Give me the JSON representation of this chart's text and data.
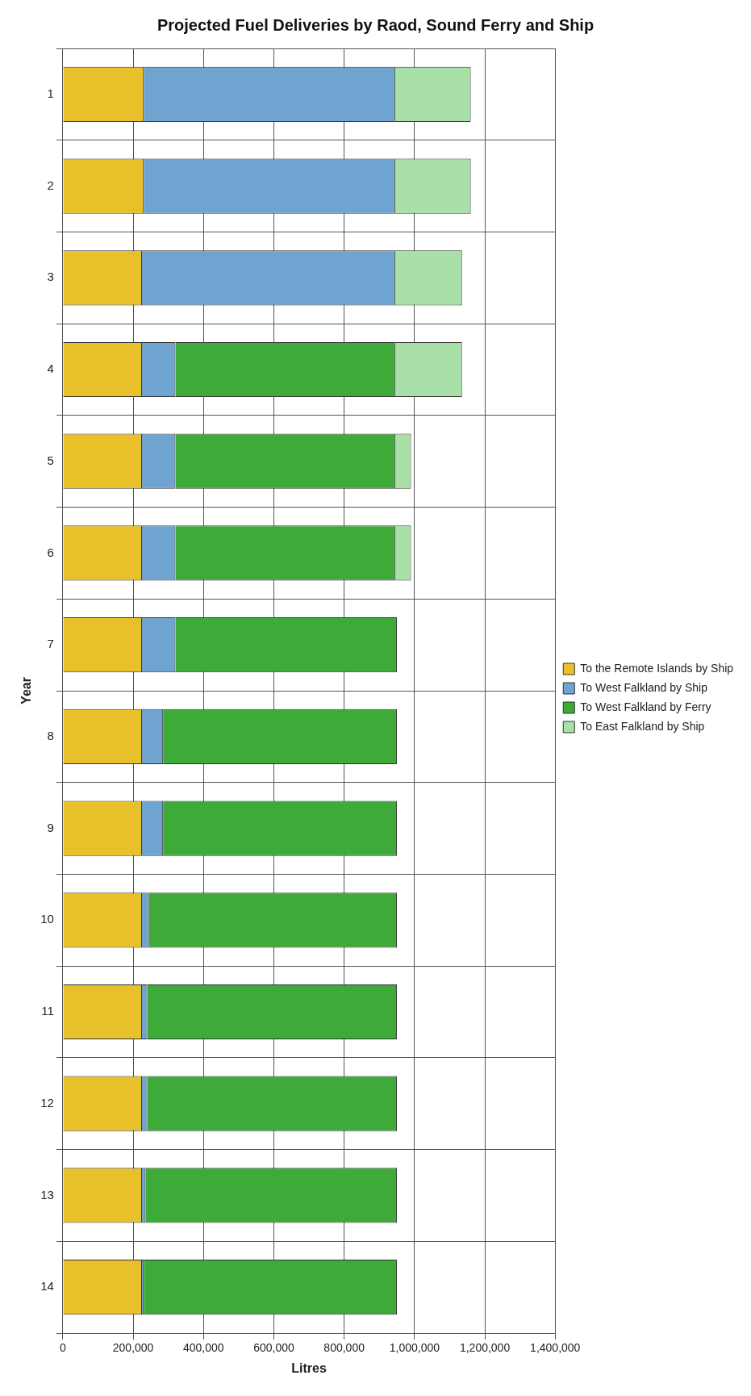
{
  "chart_data": {
    "type": "bar",
    "orientation": "horizontal",
    "stacked": true,
    "title": "Projected Fuel Deliveries by Raod, Sound Ferry and Ship",
    "xlabel": "Litres",
    "ylabel": "Year",
    "categories": [
      "1",
      "2",
      "3",
      "4",
      "5",
      "6",
      "7",
      "8",
      "9",
      "10",
      "11",
      "12",
      "13",
      "14"
    ],
    "series": [
      {
        "name": "To the Remote Islands by Ship",
        "color": "#e8c12a",
        "values": [
          230000,
          230000,
          225000,
          225000,
          225000,
          225000,
          225000,
          225000,
          225000,
          225000,
          225000,
          225000,
          225000,
          225000
        ]
      },
      {
        "name": "To West Falkland by Ship",
        "color": "#6ea4cf",
        "values": [
          715000,
          715000,
          720000,
          95000,
          95000,
          95000,
          95000,
          60000,
          60000,
          20000,
          15000,
          15000,
          10000,
          5000
        ]
      },
      {
        "name": "To West Falkland by Ferry",
        "color": "#3daa3a",
        "values": [
          0,
          0,
          0,
          625000,
          625000,
          625000,
          630000,
          665000,
          665000,
          705000,
          710000,
          710000,
          715000,
          720000
        ]
      },
      {
        "name": "To East Falkland by Ship",
        "color": "#a8e0a8",
        "values": [
          215000,
          215000,
          190000,
          190000,
          45000,
          45000,
          0,
          0,
          0,
          0,
          0,
          0,
          0,
          0
        ]
      }
    ],
    "xlim": [
      0,
      1400000
    ],
    "xticks": [
      0,
      {
        "value": 200000,
        "label": "200,000"
      },
      {
        "value": 400000,
        "label": "400,000"
      },
      {
        "value": 600000,
        "label": "600,000"
      },
      {
        "value": 800000,
        "label": "800,000"
      },
      {
        "value": 1000000,
        "label": "1,000,000"
      },
      {
        "value": 1200000,
        "label": "1,200,000"
      },
      {
        "value": 1400000,
        "label": "1,400,000"
      }
    ],
    "grid": true,
    "legend": "right"
  }
}
